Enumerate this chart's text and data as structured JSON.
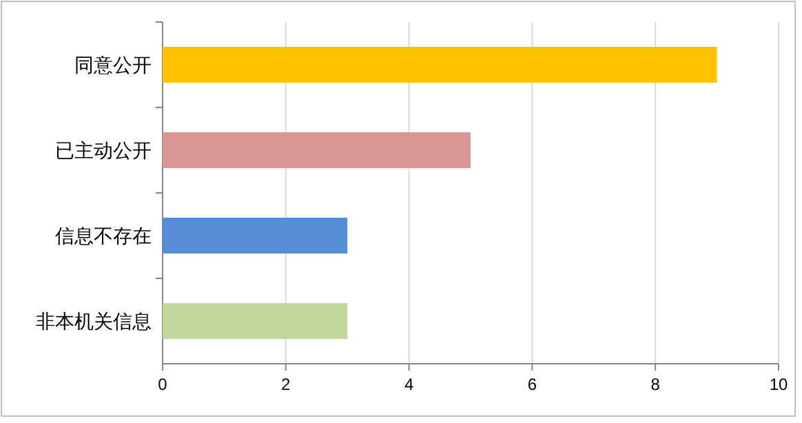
{
  "chart_data": {
    "type": "bar",
    "orientation": "horizontal",
    "categories": [
      "同意公开",
      "已主动公开",
      "信息不存在",
      "非本机关信息"
    ],
    "values": [
      9,
      5,
      3,
      3
    ],
    "colors": [
      "#ffc000",
      "#d99694",
      "#558ed5",
      "#c3d69b"
    ],
    "xlim": [
      0,
      10
    ],
    "xticks": [
      0,
      2,
      4,
      6,
      8,
      10
    ],
    "grid": "x"
  }
}
